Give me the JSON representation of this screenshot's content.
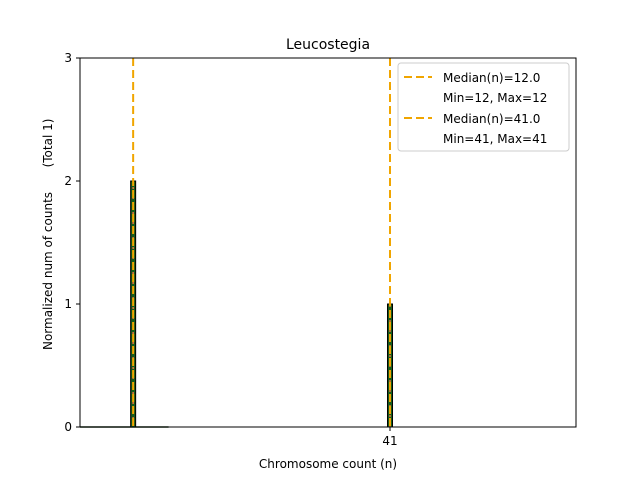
{
  "chart_data": {
    "type": "bar",
    "title": "Leucostegia",
    "xlabel": "Chromosome count (n)",
    "ylabel": "Normalized num of counts",
    "ylabel_note": "(Total 1)",
    "xlim": [
      6,
      62
    ],
    "ylim": [
      0,
      3
    ],
    "yticks": [
      0,
      1,
      2,
      3
    ],
    "xticks": [
      41
    ],
    "bars": [
      {
        "x": 12,
        "value": 2
      },
      {
        "x": 41,
        "value": 1
      }
    ],
    "medians": [
      {
        "x": 12,
        "label": "Median(n)=12.0",
        "range_label": "Min=12, Max=12"
      },
      {
        "x": 41,
        "label": "Median(n)=41.0",
        "range_label": "Min=41, Max=41"
      }
    ],
    "baseline": {
      "x_start": 6,
      "x_end": 16
    },
    "colors": {
      "bar_fill": "#1a5c1a",
      "bar_edge": "#000000",
      "bar_hatch": "#e8743b",
      "median_line": "#f0a500",
      "baseline": "#1a3a1a"
    },
    "legend_position": "top-right"
  }
}
